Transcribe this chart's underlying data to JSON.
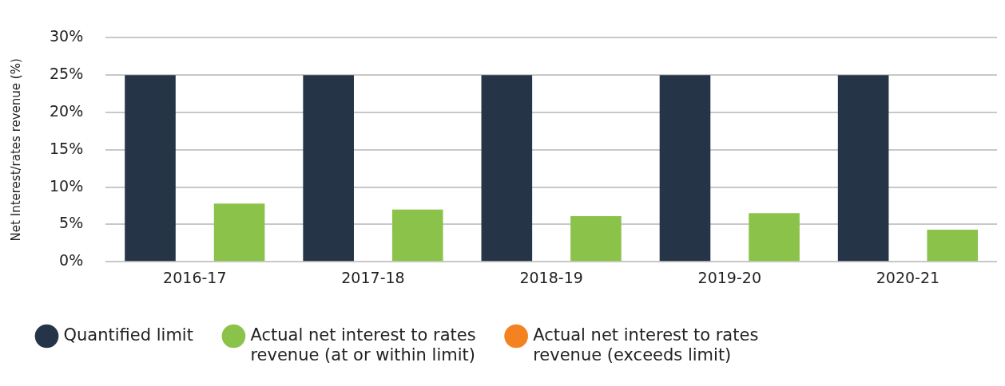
{
  "chart_data": {
    "type": "bar",
    "ylabel": "Net Interest/rates revenue (%)",
    "categories": [
      "2016-17",
      "2017-18",
      "2018-19",
      "2019-20",
      "2020-21"
    ],
    "series": [
      {
        "name": "Quantified limit",
        "color": "#253446",
        "values": [
          25,
          25,
          25,
          25,
          25
        ]
      },
      {
        "name": "Actual net interest to rates revenue (at or within limit)",
        "color": "#8bc34a",
        "values": [
          7.8,
          7.0,
          6.1,
          6.5,
          4.3
        ]
      },
      {
        "name": "Actual net interest to rates revenue (exceeds limit)",
        "color": "#f58220",
        "values": [
          null,
          null,
          null,
          null,
          null
        ]
      }
    ],
    "ylim": [
      0,
      30
    ],
    "yticks": [
      {
        "value": 0,
        "label": "0%"
      },
      {
        "value": 5,
        "label": "5%"
      },
      {
        "value": 10,
        "label": "10%"
      },
      {
        "value": 15,
        "label": "15%"
      },
      {
        "value": 20,
        "label": "20%"
      },
      {
        "value": 25,
        "label": "25%"
      },
      {
        "value": 30,
        "label": "30%"
      }
    ],
    "grid": "y",
    "legend": "bottom"
  }
}
